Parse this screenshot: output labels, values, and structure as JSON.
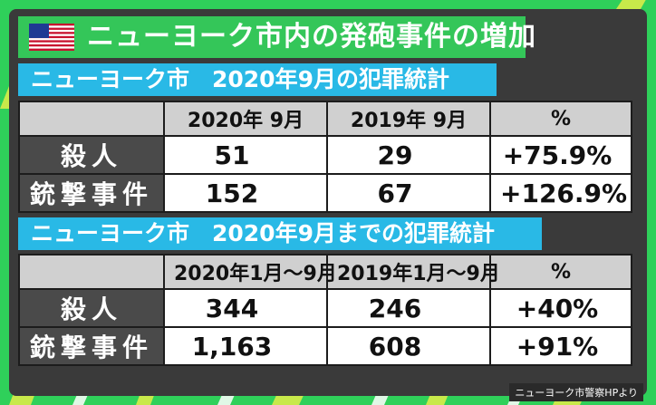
{
  "header": {
    "title": "ニューヨーク市内の発砲事件の増加",
    "flag_icon": "us-flag-icon"
  },
  "colors": {
    "background_green": "#2fd05a",
    "title_bar_green": "#34c659",
    "section_bar_blue": "#29b9e6",
    "panel_dark": "#3a3a3a",
    "row_header_dark": "#4a4a4a"
  },
  "chart_data": [
    {
      "type": "table",
      "title": "ニューヨーク市　2020年9月の犯罪統計",
      "columns": [
        "2020年 9月",
        "2019年 9月",
        "%"
      ],
      "rows": [
        {
          "label": "殺人",
          "values": [
            "51",
            "29",
            "+75.9%"
          ]
        },
        {
          "label": "銃撃事件",
          "values": [
            "152",
            "67",
            "+126.9%"
          ]
        }
      ]
    },
    {
      "type": "table",
      "title": "ニューヨーク市　2020年9月までの犯罪統計",
      "columns": [
        "2020年1月～9月",
        "2019年1月～9月",
        "%"
      ],
      "rows": [
        {
          "label": "殺人",
          "values": [
            "344",
            "246",
            "+40%"
          ]
        },
        {
          "label": "銃撃事件",
          "values": [
            "1,163",
            "608",
            "+91%"
          ]
        }
      ]
    }
  ],
  "source": "ニューヨーク市警察HPより"
}
